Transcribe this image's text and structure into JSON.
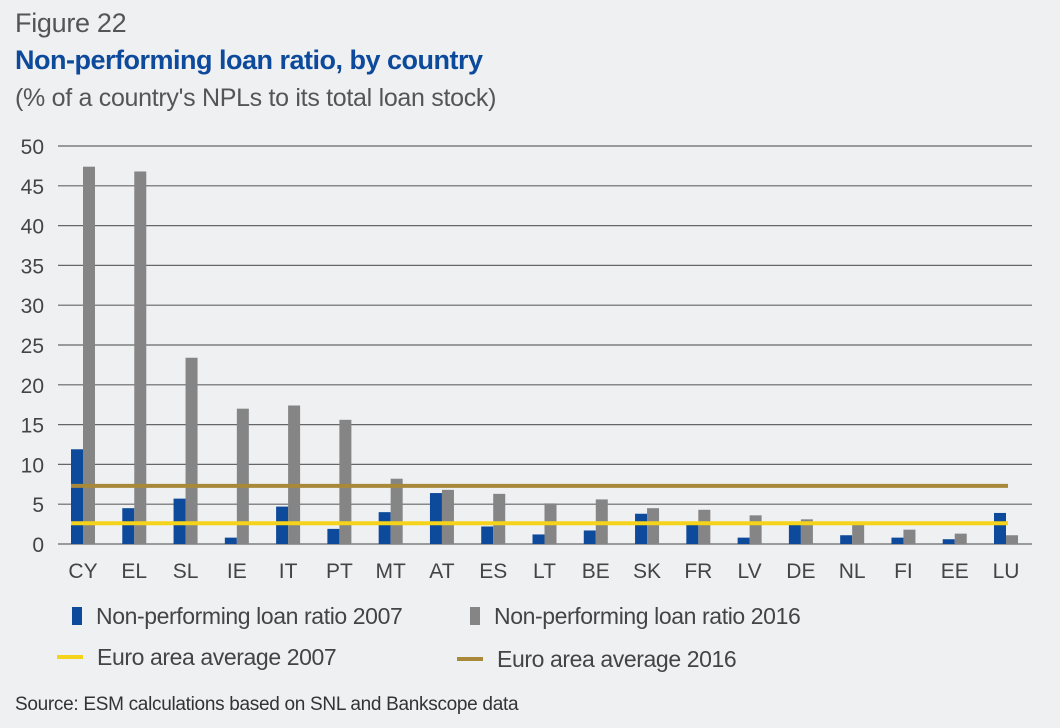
{
  "figure_label": "Figure 22",
  "title": "Non-performing loan ratio, by country",
  "subtitle": "(% of a country's NPLs to its total loan stock)",
  "source": "Source: ESM calculations based on SNL and Bankscope data",
  "colors": {
    "npl_2007": "#0d4a9b",
    "npl_2016": "#858585",
    "avg_2007": "#f5d31b",
    "avg_2016": "#a8893a",
    "grid": "#666666"
  },
  "chart_data": {
    "type": "bar",
    "title": "Non-performing loan ratio, by country",
    "subtitle": "(% of a country's NPLs to its total loan stock)",
    "xlabel": "",
    "ylabel": "",
    "ylim": [
      0,
      50
    ],
    "yticks": [
      0,
      5,
      10,
      15,
      20,
      25,
      30,
      35,
      40,
      45,
      50
    ],
    "grid": true,
    "legend_position": "bottom",
    "categories": [
      "CY",
      "EL",
      "SL",
      "IE",
      "IT",
      "PT",
      "MT",
      "AT",
      "ES",
      "LT",
      "BE",
      "SK",
      "FR",
      "LV",
      "DE",
      "NL",
      "FI",
      "EE",
      "LU"
    ],
    "series": [
      {
        "name": "Non-performing loan ratio 2007",
        "type": "bar",
        "values": [
          11.9,
          4.5,
          5.7,
          0.8,
          4.7,
          1.9,
          4.0,
          6.4,
          2.2,
          1.2,
          1.7,
          3.8,
          2.6,
          0.8,
          2.6,
          1.1,
          0.8,
          0.6,
          3.9
        ]
      },
      {
        "name": "Non-performing loan ratio 2016",
        "type": "bar",
        "values": [
          47.4,
          46.8,
          23.4,
          17.0,
          17.4,
          15.6,
          8.2,
          6.8,
          6.3,
          5.1,
          5.6,
          4.5,
          4.3,
          3.6,
          3.1,
          2.6,
          1.8,
          1.3,
          1.1
        ]
      },
      {
        "name": "Euro area average 2007",
        "type": "line",
        "value": 2.6
      },
      {
        "name": "Euro area average 2016",
        "type": "line",
        "value": 7.3
      }
    ]
  },
  "legend": [
    {
      "label": "Non-performing loan ratio 2007",
      "kind": "box",
      "color": "#0d4a9b"
    },
    {
      "label": "Non-performing loan ratio 2016",
      "kind": "box",
      "color": "#858585"
    },
    {
      "label": "Euro area average 2007",
      "kind": "line",
      "color": "#f5d31b"
    },
    {
      "label": "Euro area average 2016",
      "kind": "line",
      "color": "#a8893a"
    }
  ]
}
